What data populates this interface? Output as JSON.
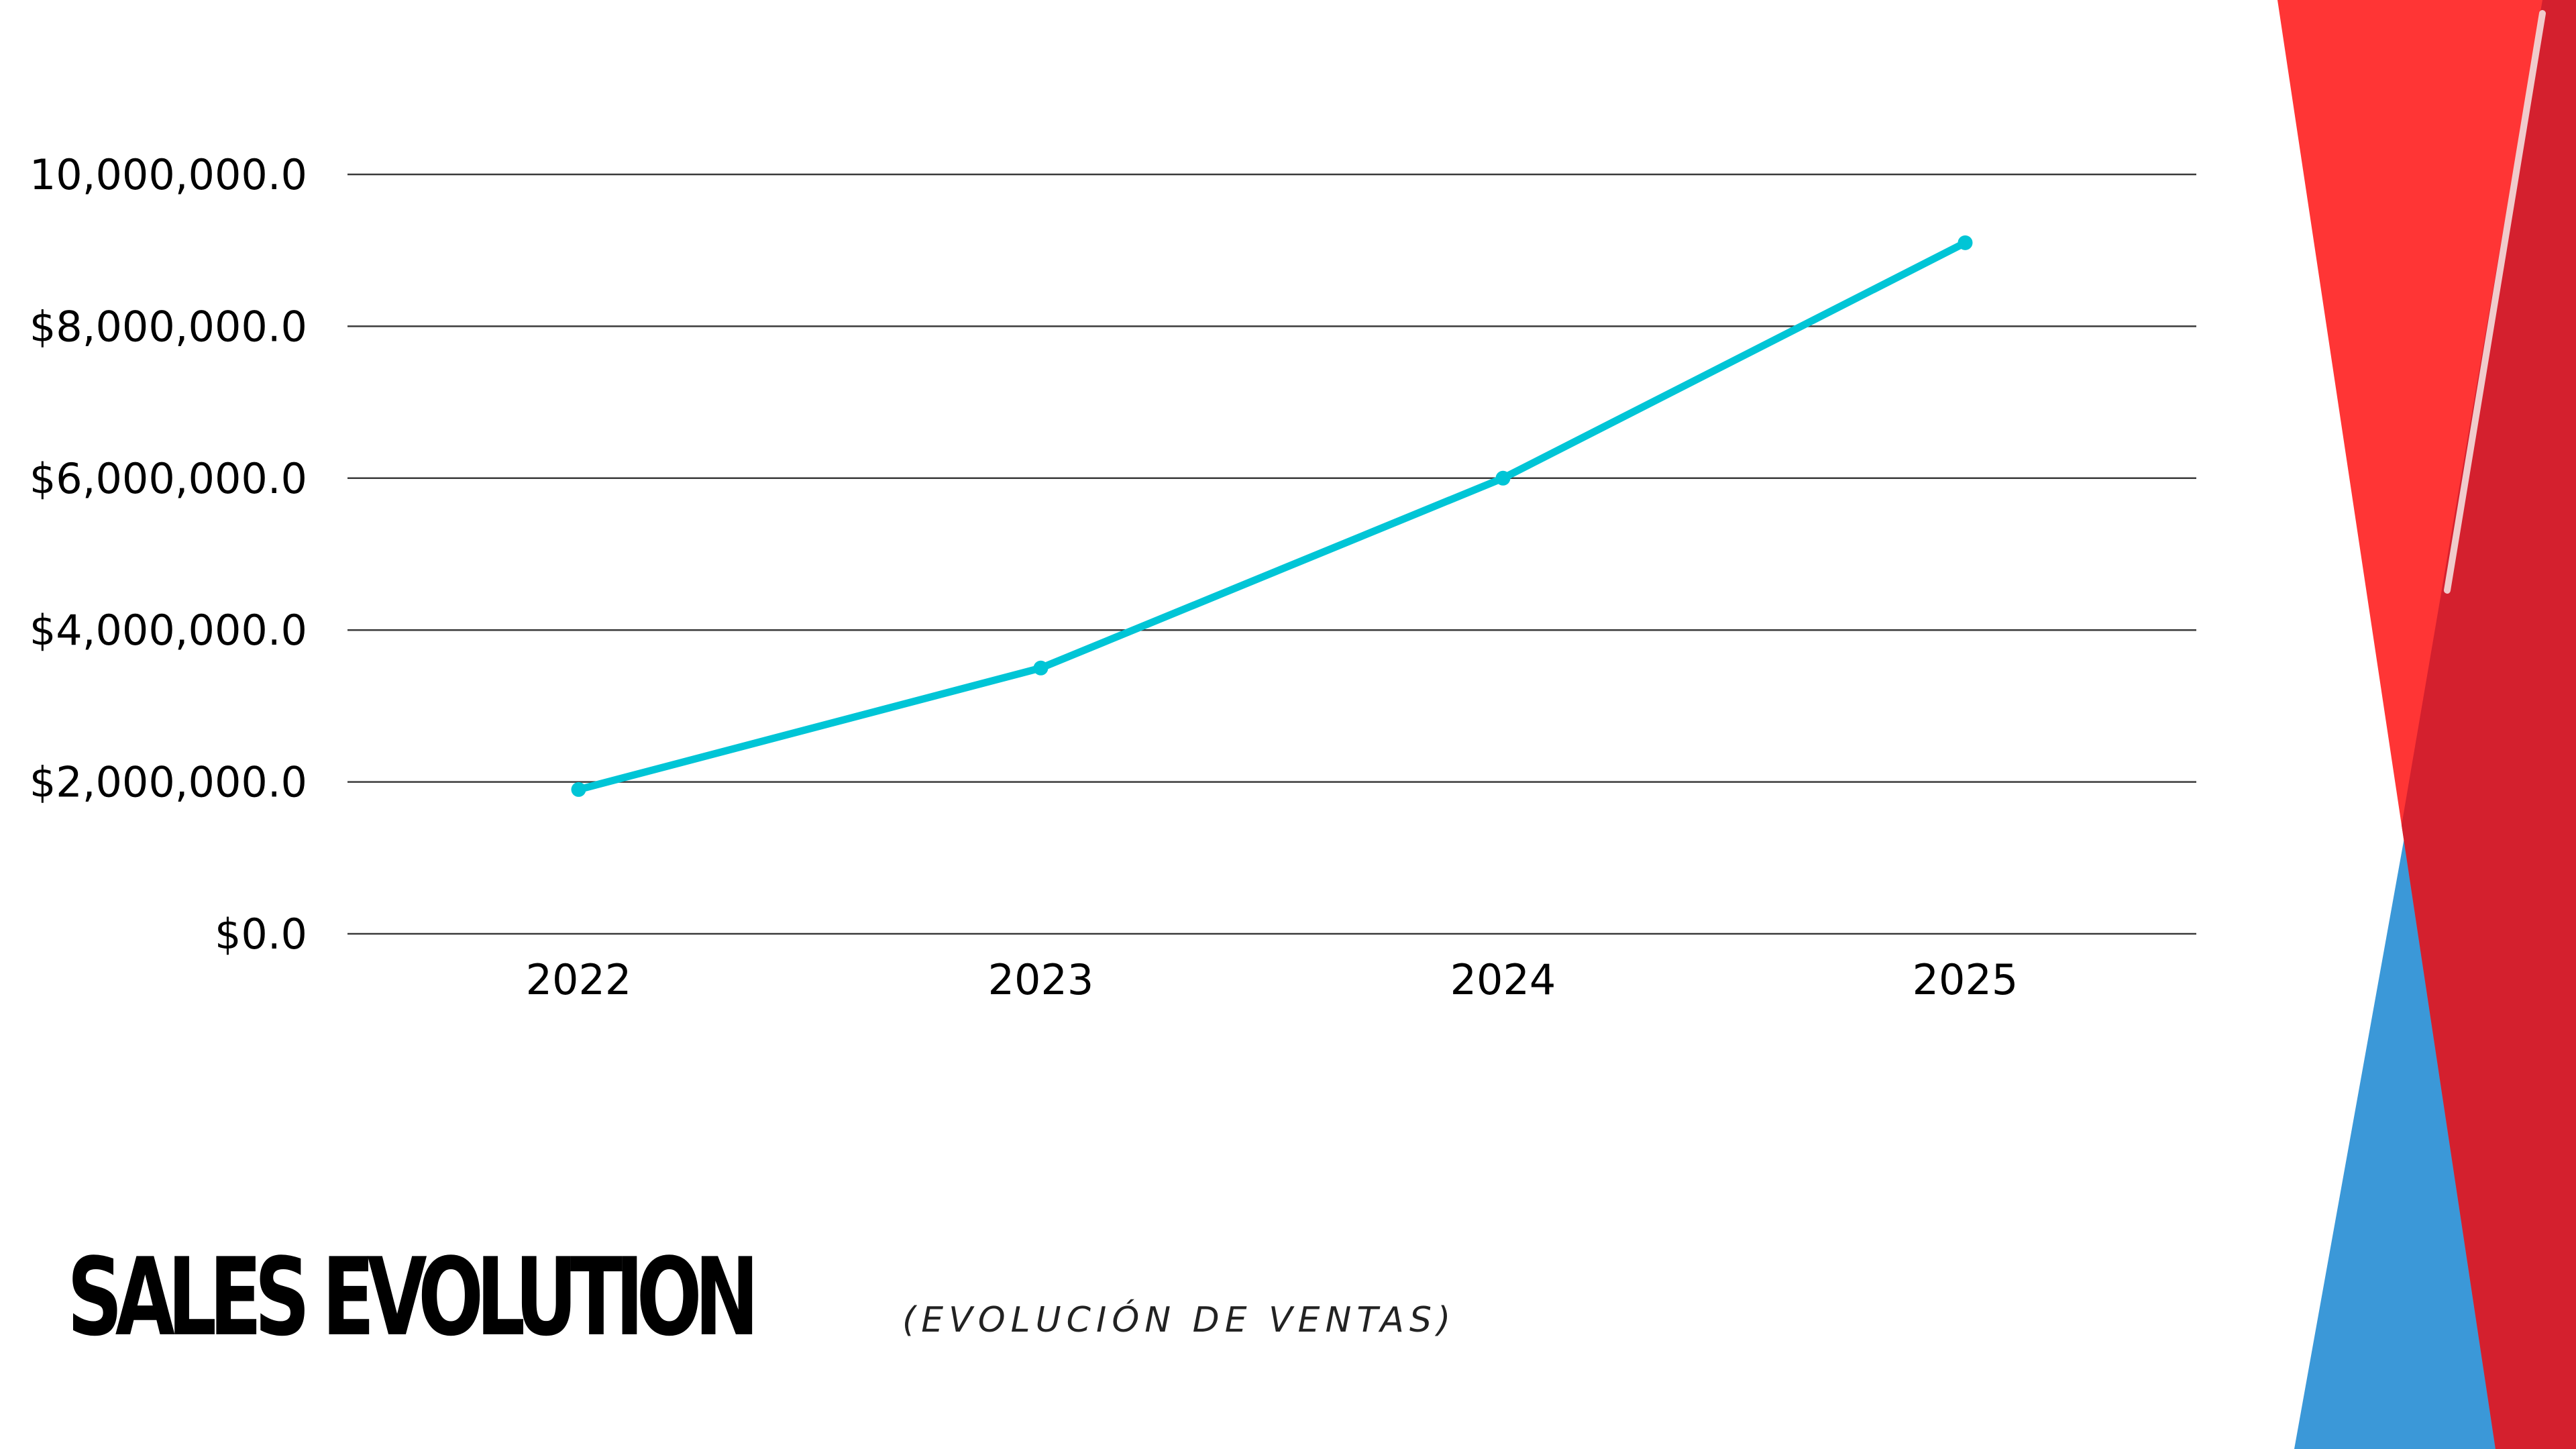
{
  "title": "SALES EVOLUTION",
  "subtitle": "(EVOLUCIÓN DE VENTAS)",
  "colors": {
    "line": "#00c5d6",
    "grid": "#3a3a3a",
    "deco_red": "#ff3535",
    "deco_dark_red": "#d4202e",
    "deco_blue": "#3b98d8"
  },
  "chart_data": {
    "type": "line",
    "categories": [
      "2022",
      "2023",
      "2024",
      "2025"
    ],
    "series": [
      {
        "values": [
          1900000,
          3500000,
          6000000,
          9100000
        ]
      }
    ],
    "y_ticks": [
      {
        "value": 0,
        "label": "$0.0"
      },
      {
        "value": 2000000,
        "label": "$2,000,000.0"
      },
      {
        "value": 4000000,
        "label": "$4,000,000.0"
      },
      {
        "value": 6000000,
        "label": "$6,000,000.0"
      },
      {
        "value": 8000000,
        "label": "$8,000,000.0"
      },
      {
        "value": 10000000,
        "label": "10,000,000.0"
      }
    ],
    "ylim": [
      0,
      10000000
    ],
    "grid": true,
    "legend": "none"
  }
}
